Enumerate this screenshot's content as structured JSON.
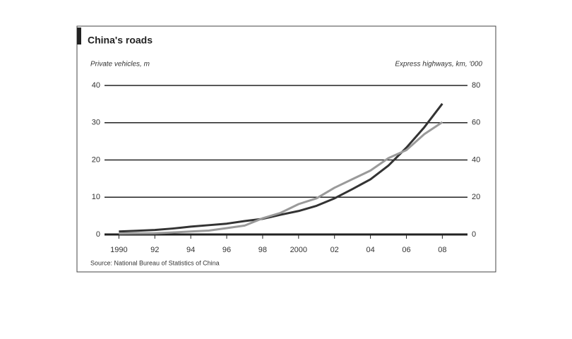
{
  "chart_data": {
    "type": "line",
    "title": "China's roads",
    "y_label": "Private vehicles, m",
    "y2_label": "Express highways, km, '000",
    "source": "Source: National Bureau of Statistics of China",
    "x": [
      1990,
      1991,
      1992,
      1993,
      1994,
      1995,
      1996,
      1997,
      1998,
      1999,
      2000,
      2001,
      2002,
      2003,
      2004,
      2005,
      2006,
      2007,
      2008
    ],
    "series": [
      {
        "color": "#333333",
        "values": [
          0.8,
          1.0,
          1.2,
          1.6,
          2.1,
          2.5,
          2.9,
          3.6,
          4.2,
          5.3,
          6.3,
          7.7,
          9.7,
          12.2,
          14.8,
          18.5,
          23.3,
          28.8,
          35.1
        ]
      },
      {
        "color": "#9a9a9a",
        "axis": "y2",
        "values": [
          0.5,
          0.6,
          0.65,
          1.1,
          1.6,
          2.1,
          3.4,
          4.8,
          8.7,
          11.6,
          16.3,
          19.4,
          25.1,
          29.7,
          34.3,
          41.0,
          45.3,
          53.9,
          60.3
        ]
      }
    ],
    "xlim": [
      1989.2,
      2009.4
    ],
    "xticks": [
      1990,
      {
        "value": 1992,
        "label": "92"
      },
      {
        "value": 1994,
        "label": "94"
      },
      {
        "value": 1996,
        "label": "96"
      },
      {
        "value": 1998,
        "label": "98"
      },
      2000,
      {
        "value": 2002,
        "label": "02"
      },
      {
        "value": 2004,
        "label": "04"
      },
      {
        "value": 2006,
        "label": "06"
      },
      {
        "value": 2008,
        "label": "08"
      }
    ],
    "ylim": [
      0,
      40
    ],
    "yticks": [
      0,
      10,
      20,
      30,
      40
    ],
    "y2lim": [
      0,
      80
    ],
    "y2ticks": [
      0,
      20,
      40,
      60,
      80
    ],
    "grid": true
  }
}
